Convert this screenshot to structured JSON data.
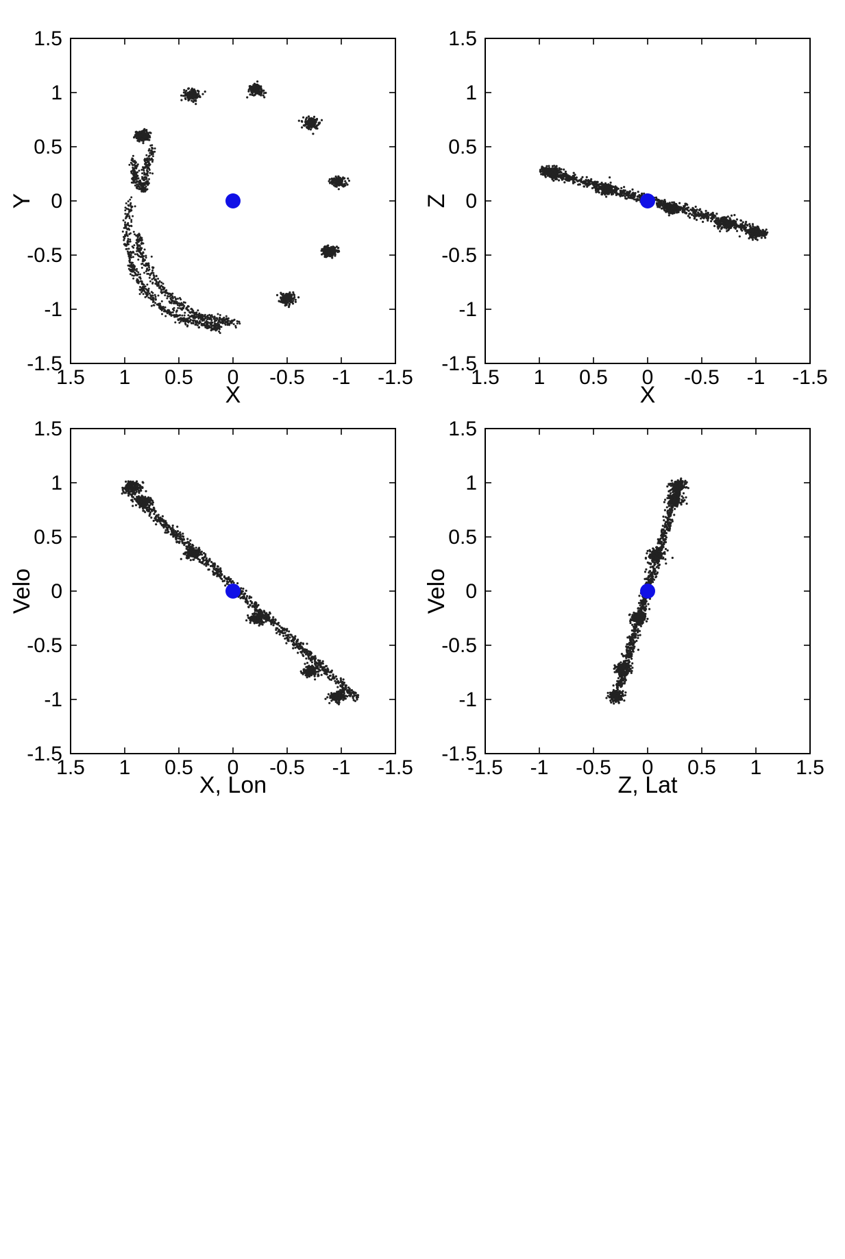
{
  "chart_data": [
    {
      "type": "scatter",
      "panel": "top-left",
      "xlabel": "X",
      "ylabel": "Y",
      "xlim": [
        1.5,
        -1.5
      ],
      "ylim": [
        -1.5,
        1.5
      ],
      "x_reversed": true,
      "xticks": [
        1.5,
        1,
        0.5,
        0,
        -0.5,
        -1,
        -1.5
      ],
      "yticks": [
        1.5,
        1,
        0.5,
        0,
        -0.5,
        -1,
        -1.5
      ],
      "xtick_labels": [
        "1.5",
        "1",
        "0.5",
        "0",
        "-0.5",
        "-1",
        "-1.5"
      ],
      "ytick_labels": [
        "1.5",
        "1",
        "0.5",
        "0",
        "-0.5",
        "-1",
        "-1.5"
      ],
      "grid": false,
      "series": [
        {
          "marker_color": "#222222",
          "clusters": [
            {
              "x": 0.84,
              "y": 0.6
            },
            {
              "x": 0.38,
              "y": 0.98
            },
            {
              "x": -0.21,
              "y": 1.02
            },
            {
              "x": -0.72,
              "y": 0.72
            },
            {
              "x": -0.97,
              "y": 0.18
            },
            {
              "x": -0.9,
              "y": -0.47
            },
            {
              "x": -0.5,
              "y": -0.9
            }
          ],
          "arcs": [
            {
              "x": [
                0.96,
                0.98,
                0.93,
                0.82,
                0.65,
                0.45,
                0.25,
                0.12
              ],
              "y": [
                0.0,
                -0.35,
                -0.62,
                -0.83,
                -1.0,
                -1.1,
                -1.15,
                -1.17
              ]
            },
            {
              "x": [
                0.88,
                0.85,
                0.72,
                0.55,
                0.35,
                0.15,
                -0.05
              ],
              "y": [
                -0.3,
                -0.5,
                -0.74,
                -0.92,
                -1.05,
                -1.1,
                -1.12
              ]
            },
            {
              "x": [
                0.92,
                0.9,
                0.82,
                0.8,
                0.75
              ],
              "y": [
                0.38,
                0.2,
                0.08,
                0.3,
                0.5
              ]
            }
          ]
        },
        {
          "name": "center",
          "marker_color": "#1010e6",
          "x": [
            0
          ],
          "y": [
            0
          ]
        }
      ]
    },
    {
      "type": "scatter",
      "panel": "top-right",
      "xlabel": "X",
      "ylabel": "Z",
      "xlim": [
        1.5,
        -1.5
      ],
      "ylim": [
        -1.5,
        1.5
      ],
      "x_reversed": true,
      "xticks": [
        1.5,
        1,
        0.5,
        0,
        -0.5,
        -1,
        -1.5
      ],
      "yticks": [
        1.5,
        1,
        0.5,
        0,
        -0.5,
        -1,
        -1.5
      ],
      "xtick_labels": [
        "1.5",
        "1",
        "0.5",
        "0",
        "-0.5",
        "-1",
        "-1.5"
      ],
      "ytick_labels": [
        "1.5",
        "1",
        "0.5",
        "0",
        "-0.5",
        "-1",
        "-1.5"
      ],
      "grid": false,
      "series": [
        {
          "marker_color": "#222222",
          "line_band": {
            "x_from": 1.0,
            "y_from": 0.29,
            "x_to": -1.1,
            "y_to": -0.3
          },
          "clusters": [
            {
              "x": 0.88,
              "y": 0.26
            },
            {
              "x": 0.38,
              "y": 0.11
            },
            {
              "x": -0.22,
              "y": -0.07
            },
            {
              "x": -0.72,
              "y": -0.21
            },
            {
              "x": -1.0,
              "y": -0.3
            }
          ]
        },
        {
          "name": "center",
          "marker_color": "#1010e6",
          "x": [
            0
          ],
          "y": [
            0
          ]
        }
      ]
    },
    {
      "type": "scatter",
      "panel": "bottom-left",
      "xlabel": "X, Lon",
      "ylabel": "Velo",
      "xlim": [
        1.5,
        -1.5
      ],
      "ylim": [
        -1.5,
        1.5
      ],
      "x_reversed": true,
      "xticks": [
        1.5,
        1,
        0.5,
        0,
        -0.5,
        -1,
        -1.5
      ],
      "yticks": [
        1.5,
        1,
        0.5,
        0,
        -0.5,
        -1,
        -1.5
      ],
      "xtick_labels": [
        "1.5",
        "1",
        "0.5",
        "0",
        "-0.5",
        "-1",
        "-1.5"
      ],
      "ytick_labels": [
        "1.5",
        "1",
        "0.5",
        "0",
        "-0.5",
        "-1",
        "-1.5"
      ],
      "grid": false,
      "series": [
        {
          "marker_color": "#222222",
          "line_band": {
            "x_from": 1.0,
            "y_from": 0.95,
            "x_to": -1.15,
            "y_to": -1.0
          },
          "clusters": [
            {
              "x": 0.82,
              "y": 0.82
            },
            {
              "x": 0.92,
              "y": 0.96
            },
            {
              "x": 0.38,
              "y": 0.35
            },
            {
              "x": -0.22,
              "y": -0.25
            },
            {
              "x": -0.72,
              "y": -0.74
            },
            {
              "x": -0.97,
              "y": -0.97
            }
          ]
        },
        {
          "name": "center",
          "marker_color": "#1010e6",
          "x": [
            0
          ],
          "y": [
            0
          ]
        }
      ]
    },
    {
      "type": "scatter",
      "panel": "bottom-right",
      "xlabel": "Z, Lat",
      "ylabel": "Velo",
      "xlim": [
        -1.5,
        1.5
      ],
      "ylim": [
        -1.5,
        1.5
      ],
      "x_reversed": false,
      "xticks": [
        -1.5,
        -1,
        -0.5,
        0,
        0.5,
        1,
        1.5
      ],
      "yticks": [
        1.5,
        1,
        0.5,
        0,
        -0.5,
        -1,
        -1.5
      ],
      "xtick_labels": [
        "-1.5",
        "-1",
        "-0.5",
        "0",
        "0.5",
        "1",
        "1.5"
      ],
      "ytick_labels": [
        "1.5",
        "1",
        "0.5",
        "0",
        "-0.5",
        "-1",
        "-1.5"
      ],
      "grid": false,
      "series": [
        {
          "marker_color": "#222222",
          "line_band": {
            "x_from": -0.3,
            "y_from": -1.0,
            "x_to": 0.3,
            "y_to": 1.02
          },
          "clusters": [
            {
              "x": 0.25,
              "y": 0.85
            },
            {
              "x": 0.28,
              "y": 0.97
            },
            {
              "x": 0.08,
              "y": 0.33
            },
            {
              "x": -0.09,
              "y": -0.25
            },
            {
              "x": -0.23,
              "y": -0.72
            },
            {
              "x": -0.29,
              "y": -0.97
            }
          ]
        },
        {
          "name": "center",
          "marker_color": "#1010e6",
          "x": [
            0
          ],
          "y": [
            0
          ]
        }
      ]
    }
  ]
}
